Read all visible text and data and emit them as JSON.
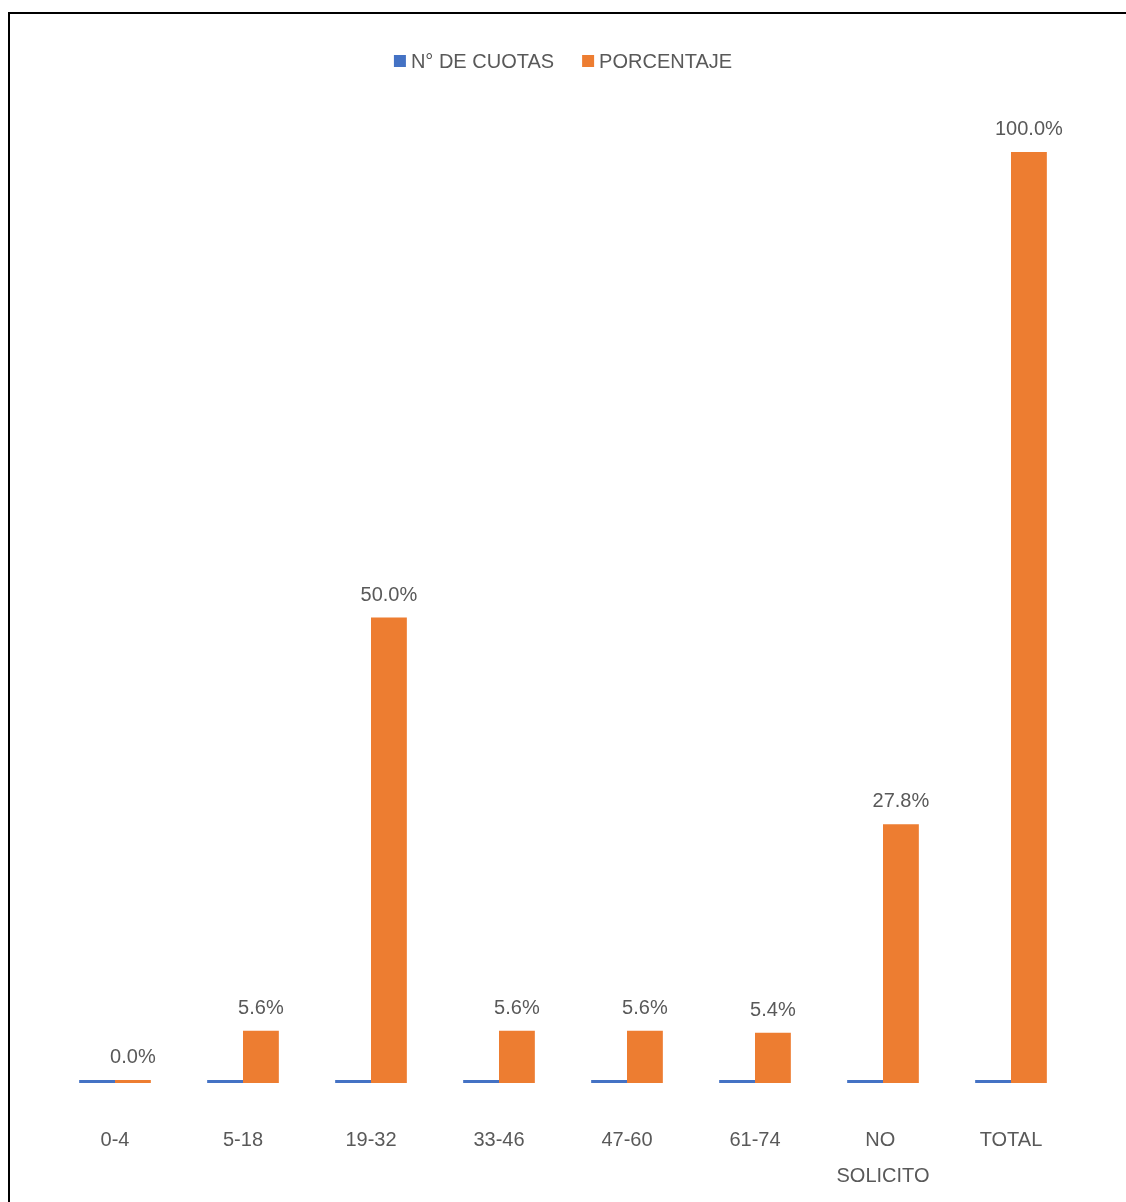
{
  "chart_data": {
    "type": "bar",
    "categories": [
      "0-4",
      "5-18",
      "19-32",
      "33-46",
      "47-60",
      "61-74",
      "NO SOLICITO",
      "TOTAL"
    ],
    "series": [
      {
        "name": "N° DE CUOTAS",
        "color": "#4472c4",
        "values": [
          0,
          0,
          0,
          0,
          0,
          0,
          0,
          0
        ]
      },
      {
        "name": "PORCENTAJE",
        "color": "#ed7d31",
        "values": [
          0,
          5.6,
          50,
          5.6,
          5.6,
          5.4,
          27.8,
          100
        ],
        "value_labels": [
          "0.0%",
          "5.6%",
          "50.0%",
          "5.6%",
          "5.6%",
          "5.4%",
          "27.8%",
          "100.0%"
        ]
      }
    ],
    "legend": "top"
  }
}
